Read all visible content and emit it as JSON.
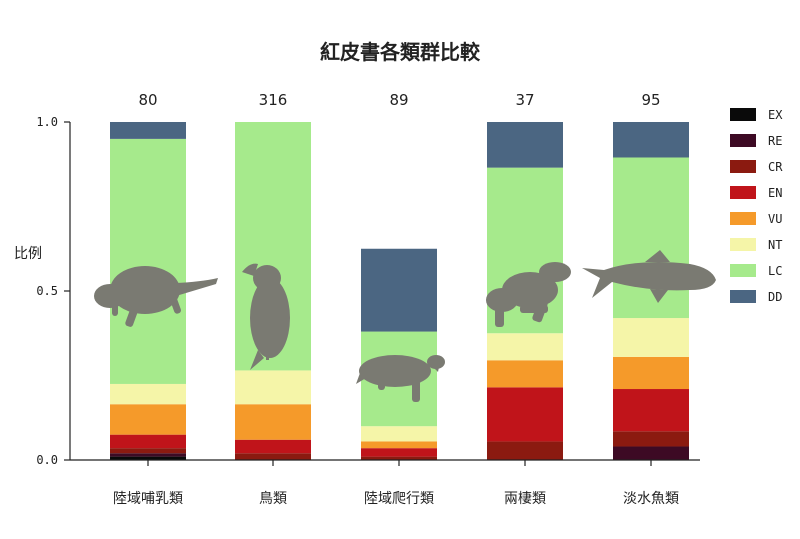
{
  "chart_data": {
    "type": "bar",
    "stacked": true,
    "title": "紅皮書各類群比較",
    "ylabel": "比例",
    "ylim": [
      0,
      1
    ],
    "yticks": [
      "0.0",
      "0.5",
      "1.0"
    ],
    "categories": [
      "陸域哺乳類",
      "鳥類",
      "陸域爬行類",
      "兩棲類",
      "淡水魚類"
    ],
    "counts": [
      "80",
      "316",
      "89",
      "37",
      "95"
    ],
    "series": [
      {
        "name": "EX",
        "color": "#0a0a0a",
        "values": [
          0.01,
          0.0,
          0.0,
          0.0,
          0.0
        ]
      },
      {
        "name": "RE",
        "color": "#3d0a24",
        "values": [
          0.01,
          0.0,
          0.0,
          0.0,
          0.04
        ]
      },
      {
        "name": "CR",
        "color": "#8b1a10",
        "values": [
          0.015,
          0.02,
          0.01,
          0.055,
          0.045
        ]
      },
      {
        "name": "EN",
        "color": "#c0141a",
        "values": [
          0.04,
          0.04,
          0.025,
          0.16,
          0.125
        ]
      },
      {
        "name": "VU",
        "color": "#f59a2a",
        "values": [
          0.09,
          0.105,
          0.02,
          0.08,
          0.095
        ]
      },
      {
        "name": "NT",
        "color": "#f5f5a8",
        "values": [
          0.06,
          0.1,
          0.045,
          0.08,
          0.115
        ]
      },
      {
        "name": "LC",
        "color": "#a6ea8c",
        "values": [
          0.725,
          0.735,
          0.28,
          0.49,
          0.475
        ]
      },
      {
        "name": "DD",
        "color": "#4b6682",
        "values": [
          0.05,
          0.0,
          0.245,
          0.135,
          0.105
        ]
      }
    ],
    "annotations": [
      "mammal-silhouette",
      "bird-silhouette",
      "turtle-silhouette",
      "frog-silhouette",
      "fish-silhouette"
    ],
    "grid": false,
    "legend_position": "right"
  }
}
